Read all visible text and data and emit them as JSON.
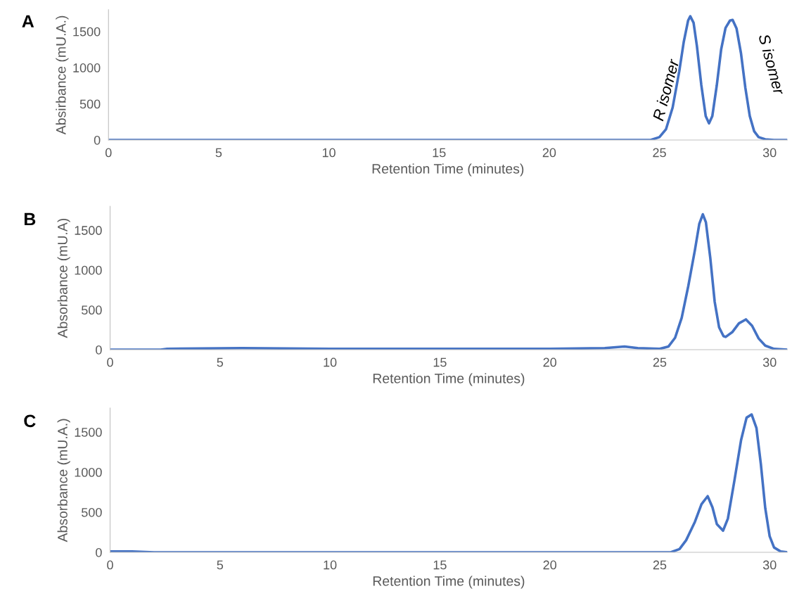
{
  "chart_data": [
    {
      "type": "line",
      "title": "A",
      "xlabel": "Retention Time (minutes)",
      "ylabel": "Absirbance (mU.A.)",
      "xlim": [
        0,
        30.8
      ],
      "ylim": [
        0,
        1800
      ],
      "xticks": [
        0,
        5,
        10,
        15,
        20,
        25,
        30
      ],
      "yticks": [
        0,
        500,
        1000,
        1500
      ],
      "grid": false,
      "legend": false,
      "marker": "none",
      "line_style": "solid",
      "series": [
        {
          "color": "#4472c4",
          "x": [
            0,
            5,
            10,
            15,
            20,
            24,
            24.6,
            25.0,
            25.3,
            25.6,
            25.9,
            26.1,
            26.3,
            26.4,
            26.55,
            26.7,
            26.9,
            27.1,
            27.25,
            27.4,
            27.6,
            27.8,
            28.0,
            28.2,
            28.32,
            28.5,
            28.7,
            28.9,
            29.1,
            29.3,
            29.5,
            29.8,
            30.2,
            30.8
          ],
          "values": [
            0,
            0,
            0,
            0,
            0,
            0,
            0,
            40,
            150,
            450,
            950,
            1350,
            1650,
            1710,
            1620,
            1300,
            760,
            330,
            230,
            330,
            750,
            1250,
            1550,
            1650,
            1660,
            1540,
            1200,
            720,
            330,
            120,
            40,
            10,
            0,
            0
          ]
        }
      ],
      "annotations": [
        "R isomer",
        "S isomer"
      ]
    },
    {
      "type": "line",
      "title": "B",
      "xlabel": "Retention Time (minutes)",
      "ylabel": "Absorbance (mU.A)",
      "xlim": [
        0,
        30.8
      ],
      "ylim": [
        0,
        1800
      ],
      "xticks": [
        0,
        5,
        10,
        15,
        20,
        25,
        30
      ],
      "yticks": [
        0,
        500,
        1000,
        1500
      ],
      "grid": false,
      "legend": false,
      "marker": "none",
      "line_style": "solid",
      "series": [
        {
          "color": "#4472c4",
          "x": [
            0,
            2.3,
            2.6,
            6,
            10,
            15,
            20,
            22.5,
            23.4,
            24,
            25,
            25.4,
            25.7,
            26.0,
            26.3,
            26.6,
            26.8,
            26.96,
            27.1,
            27.3,
            27.5,
            27.7,
            27.9,
            28.0,
            28.3,
            28.6,
            28.92,
            29.2,
            29.5,
            29.8,
            30.2,
            30.8
          ],
          "values": [
            0,
            0,
            10,
            20,
            10,
            10,
            10,
            20,
            40,
            20,
            10,
            40,
            150,
            400,
            800,
            1250,
            1580,
            1700,
            1600,
            1150,
            600,
            280,
            170,
            160,
            220,
            330,
            380,
            300,
            140,
            50,
            10,
            0
          ]
        }
      ]
    },
    {
      "type": "line",
      "title": "C",
      "xlabel": "Retention Time (minutes)",
      "ylabel": "Absorbance (mU.A.)",
      "xlim": [
        0,
        30.8
      ],
      "ylim": [
        0,
        1800
      ],
      "xticks": [
        0,
        5,
        10,
        15,
        20,
        25,
        30
      ],
      "yticks": [
        0,
        500,
        1000,
        1500
      ],
      "grid": false,
      "legend": false,
      "marker": "none",
      "line_style": "solid",
      "series": [
        {
          "color": "#4472c4",
          "x": [
            0,
            1,
            2,
            10,
            20,
            25,
            25.5,
            25.9,
            26.2,
            26.6,
            26.9,
            27.18,
            27.4,
            27.6,
            27.88,
            28.1,
            28.4,
            28.7,
            28.95,
            29.18,
            29.4,
            29.6,
            29.8,
            30.0,
            30.2,
            30.5,
            30.8
          ],
          "values": [
            10,
            10,
            0,
            0,
            0,
            0,
            0,
            40,
            150,
            380,
            600,
            700,
            560,
            350,
            270,
            420,
            900,
            1400,
            1680,
            1720,
            1550,
            1100,
            550,
            200,
            60,
            10,
            0
          ]
        }
      ]
    }
  ]
}
